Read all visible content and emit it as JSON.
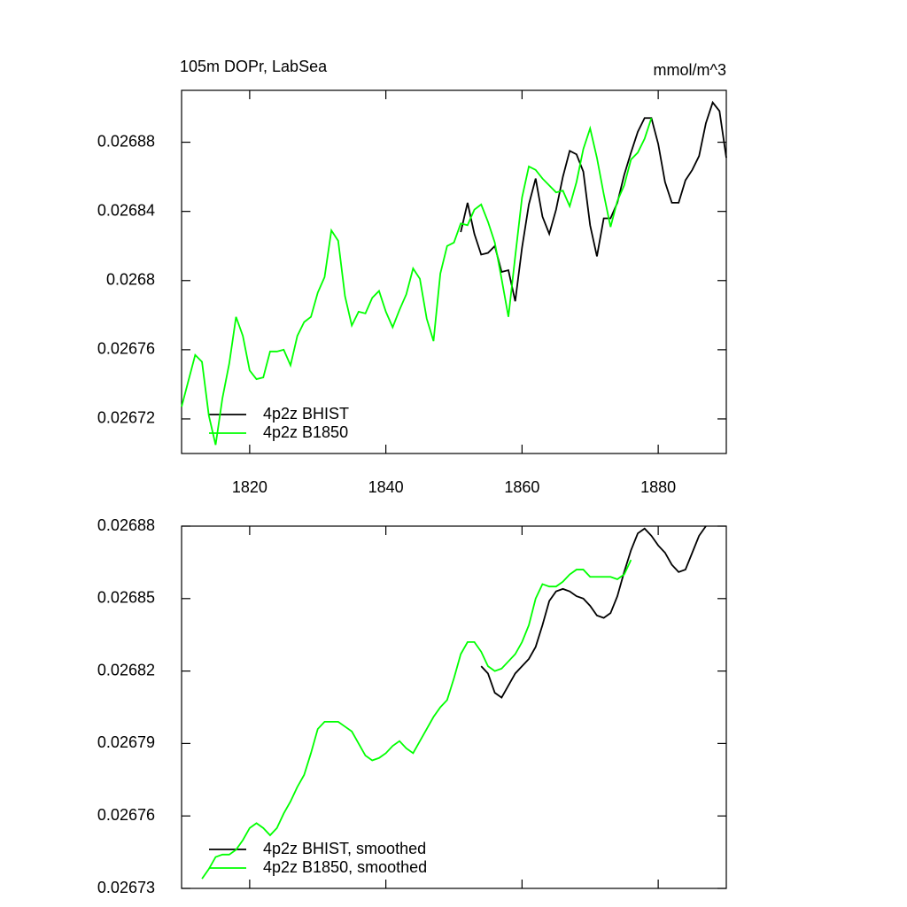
{
  "chart_data": [
    {
      "type": "line",
      "title": "105m DOPr, LabSea",
      "right_title": "mmol/m^3",
      "x": [
        1810,
        1811,
        1812,
        1813,
        1814,
        1815,
        1816,
        1817,
        1818,
        1819,
        1820,
        1821,
        1822,
        1823,
        1824,
        1825,
        1826,
        1827,
        1828,
        1829,
        1830,
        1831,
        1832,
        1833,
        1834,
        1835,
        1836,
        1837,
        1838,
        1839,
        1840,
        1841,
        1842,
        1843,
        1844,
        1845,
        1846,
        1847,
        1848,
        1849,
        1850,
        1851,
        1852,
        1853,
        1854,
        1855,
        1856,
        1857,
        1858,
        1859,
        1860,
        1861,
        1862,
        1863,
        1864,
        1865,
        1866,
        1867,
        1868,
        1869,
        1870,
        1871,
        1872,
        1873,
        1874,
        1875,
        1876,
        1877,
        1878,
        1879,
        1880,
        1881,
        1882,
        1883,
        1884,
        1885,
        1886,
        1887,
        1888,
        1889,
        1890
      ],
      "series": [
        {
          "name": "4p2z BHIST",
          "color": "#000000",
          "values": [
            null,
            null,
            null,
            null,
            null,
            null,
            null,
            null,
            null,
            null,
            null,
            null,
            null,
            null,
            null,
            null,
            null,
            null,
            null,
            null,
            null,
            null,
            null,
            null,
            null,
            null,
            null,
            null,
            null,
            null,
            null,
            null,
            null,
            null,
            null,
            null,
            null,
            null,
            null,
            null,
            null,
            0.026828,
            0.026845,
            0.026827,
            0.026815,
            0.026816,
            0.02682,
            0.026805,
            0.026806,
            0.026788,
            0.026819,
            0.026844,
            0.026859,
            0.026837,
            0.026827,
            0.026841,
            0.02686,
            0.026875,
            0.026873,
            0.026863,
            0.026832,
            0.026814,
            0.026836,
            0.026836,
            0.026845,
            0.026861,
            0.026874,
            0.026886,
            0.026894,
            0.026894,
            0.026879,
            0.026857,
            0.026845,
            0.026845,
            0.026858,
            0.026864,
            0.026872,
            0.026891,
            0.026903,
            0.026898,
            0.026871
          ]
        },
        {
          "name": "4p2z B1850",
          "color": "#00ff00",
          "values": [
            0.026727,
            0.026742,
            0.026757,
            0.026753,
            0.026722,
            0.026705,
            0.026732,
            0.026752,
            0.026779,
            0.026768,
            0.026748,
            0.026743,
            0.026744,
            0.026759,
            0.026759,
            0.02676,
            0.026751,
            0.026768,
            0.026776,
            0.026779,
            0.026793,
            0.026802,
            0.026829,
            0.026823,
            0.026791,
            0.026774,
            0.026782,
            0.026781,
            0.02679,
            0.026794,
            0.026782,
            0.026773,
            0.026783,
            0.026792,
            0.026807,
            0.026801,
            0.026778,
            0.026765,
            0.026804,
            0.02682,
            0.026822,
            0.026833,
            0.026832,
            0.026841,
            0.026844,
            0.026834,
            0.026822,
            0.026801,
            0.026779,
            0.026814,
            0.026848,
            0.026866,
            0.026864,
            0.026859,
            0.026855,
            0.026851,
            0.026852,
            0.026843,
            0.026857,
            0.026876,
            0.026888,
            0.026871,
            0.02685,
            0.026831,
            0.026846,
            0.026855,
            0.02687,
            0.026874,
            0.026882,
            0.026894,
            null,
            null,
            null,
            null,
            null,
            null,
            null,
            null,
            null,
            null,
            null
          ]
        }
      ],
      "xlim": [
        1810,
        1890
      ],
      "xticks": [
        1820,
        1840,
        1860,
        1880
      ],
      "ylim": [
        0.0267,
        0.02691
      ],
      "yticks": [
        0.02672,
        0.02676,
        0.0268,
        0.02684,
        0.02688
      ],
      "x_tick_labels": true,
      "legend": "lower left"
    },
    {
      "type": "line",
      "x": [
        1813,
        1814,
        1815,
        1816,
        1817,
        1818,
        1819,
        1820,
        1821,
        1822,
        1823,
        1824,
        1825,
        1826,
        1827,
        1828,
        1829,
        1830,
        1831,
        1832,
        1833,
        1834,
        1835,
        1836,
        1837,
        1838,
        1839,
        1840,
        1841,
        1842,
        1843,
        1844,
        1845,
        1846,
        1847,
        1848,
        1849,
        1850,
        1851,
        1852,
        1853,
        1854,
        1855,
        1856,
        1857,
        1858,
        1859,
        1860,
        1861,
        1862,
        1863,
        1864,
        1865,
        1866,
        1867,
        1868,
        1869,
        1870,
        1871,
        1872,
        1873,
        1874,
        1875,
        1876,
        1877,
        1878,
        1879,
        1880,
        1881,
        1882,
        1883,
        1884,
        1885,
        1886,
        1887
      ],
      "series": [
        {
          "name": "4p2z BHIST, smoothed",
          "color": "#000000",
          "values": [
            null,
            null,
            null,
            null,
            null,
            null,
            null,
            null,
            null,
            null,
            null,
            null,
            null,
            null,
            null,
            null,
            null,
            null,
            null,
            null,
            null,
            null,
            null,
            null,
            null,
            null,
            null,
            null,
            null,
            null,
            null,
            null,
            null,
            null,
            null,
            null,
            null,
            null,
            null,
            null,
            null,
            0.026822,
            0.026819,
            0.026811,
            0.026809,
            0.026814,
            0.026819,
            0.026822,
            0.026825,
            0.02683,
            0.026839,
            0.026849,
            0.026853,
            0.026854,
            0.026853,
            0.026851,
            0.02685,
            0.026847,
            0.026843,
            0.026842,
            0.026844,
            0.026851,
            0.026861,
            0.02687,
            0.026877,
            0.026879,
            0.026876,
            0.026872,
            0.026869,
            0.026864,
            0.026861,
            0.026862,
            0.026869,
            0.026876,
            0.02688
          ]
        },
        {
          "name": "4p2z B1850, smoothed",
          "color": "#00ff00",
          "values": [
            0.026734,
            0.026738,
            0.026743,
            0.026744,
            0.026744,
            0.026746,
            0.02675,
            0.026755,
            0.026757,
            0.026755,
            0.026752,
            0.026755,
            0.026761,
            0.026766,
            0.026772,
            0.026777,
            0.026786,
            0.026796,
            0.026799,
            0.026799,
            0.026799,
            0.026797,
            0.026795,
            0.02679,
            0.026785,
            0.026783,
            0.026784,
            0.026786,
            0.026789,
            0.026791,
            0.026788,
            0.026786,
            0.026791,
            0.026796,
            0.026801,
            0.026805,
            0.026808,
            0.026817,
            0.026827,
            0.026832,
            0.026832,
            0.026828,
            0.026822,
            0.02682,
            0.026821,
            0.026824,
            0.026827,
            0.026832,
            0.026839,
            0.02685,
            0.026856,
            0.026855,
            0.026855,
            0.026857,
            0.02686,
            0.026862,
            0.026862,
            0.026859,
            0.026859,
            0.026859,
            0.026859,
            0.026858,
            0.02686,
            0.026866,
            null,
            null,
            null,
            null,
            null,
            null,
            null,
            null,
            null,
            null,
            null
          ]
        }
      ],
      "xlim": [
        1810,
        1890
      ],
      "xticks": [
        1820,
        1840,
        1860,
        1880
      ],
      "ylim": [
        0.02673,
        0.02688
      ],
      "yticks": [
        0.02673,
        0.02676,
        0.02679,
        0.02682,
        0.02685,
        0.02688
      ],
      "x_tick_labels": false,
      "legend": "lower left"
    }
  ]
}
